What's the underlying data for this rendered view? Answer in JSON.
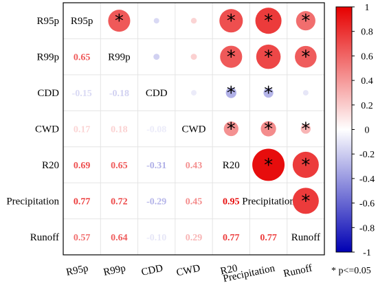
{
  "chart_data": {
    "type": "heatmap",
    "variables": [
      "R95p",
      "R99p",
      "CDD",
      "CWD",
      "R20",
      "Precipitation",
      "Runoff"
    ],
    "correlation_matrix": [
      [
        1.0,
        0.65,
        -0.15,
        0.17,
        0.69,
        0.77,
        0.57
      ],
      [
        0.65,
        1.0,
        -0.18,
        0.18,
        0.65,
        0.72,
        0.64
      ],
      [
        -0.15,
        -0.18,
        1.0,
        -0.08,
        -0.31,
        -0.29,
        -0.1
      ],
      [
        0.17,
        0.18,
        -0.08,
        1.0,
        0.43,
        0.45,
        0.29
      ],
      [
        0.69,
        0.65,
        -0.31,
        0.43,
        1.0,
        0.95,
        0.77
      ],
      [
        0.77,
        0.72,
        -0.29,
        0.45,
        0.95,
        1.0,
        0.77
      ],
      [
        0.57,
        0.64,
        -0.1,
        0.29,
        0.77,
        0.77,
        1.0
      ]
    ],
    "coef_labels": [
      [
        null,
        null,
        null,
        null,
        null,
        null,
        null
      ],
      [
        "0.65",
        null,
        null,
        null,
        null,
        null,
        null
      ],
      [
        "-0.15",
        "-0.18",
        null,
        null,
        null,
        null,
        null
      ],
      [
        "0.17",
        "0.18",
        "-0.08",
        null,
        null,
        null,
        null
      ],
      [
        "0.69",
        "0.65",
        "-0.31",
        "0.43",
        null,
        null,
        null
      ],
      [
        "0.77",
        "0.72",
        "-0.29",
        "0.45",
        "0.95",
        null,
        null
      ],
      [
        "0.57",
        "0.64",
        "-0.10",
        "0.29",
        "0.77",
        "0.77",
        null
      ]
    ],
    "significant_pairs": [
      [
        "R95p",
        "R99p"
      ],
      [
        "R95p",
        "R20"
      ],
      [
        "R95p",
        "Precipitation"
      ],
      [
        "R95p",
        "Runoff"
      ],
      [
        "R99p",
        "R20"
      ],
      [
        "R99p",
        "Precipitation"
      ],
      [
        "R99p",
        "Runoff"
      ],
      [
        "CDD",
        "R20"
      ],
      [
        "CDD",
        "Precipitation"
      ],
      [
        "CWD",
        "R20"
      ],
      [
        "CWD",
        "Precipitation"
      ],
      [
        "CWD",
        "Runoff"
      ],
      [
        "R20",
        "Precipitation"
      ],
      [
        "R20",
        "Runoff"
      ],
      [
        "Precipitation",
        "Runoff"
      ]
    ],
    "upper_triangle": "circles",
    "lower_triangle": "numbers",
    "colorbar": {
      "range": [
        -1,
        1
      ],
      "ticks": [
        "1",
        "0.8",
        "0.6",
        "0.4",
        "0.2",
        "0",
        "-0.2",
        "-0.4",
        "-0.6",
        "-0.8",
        "-1"
      ],
      "colors": {
        "negative": "#0000b3",
        "zero": "#ffffff",
        "positive": "#e60000"
      }
    },
    "significance_note": "* p<=0.05",
    "grid": true
  }
}
